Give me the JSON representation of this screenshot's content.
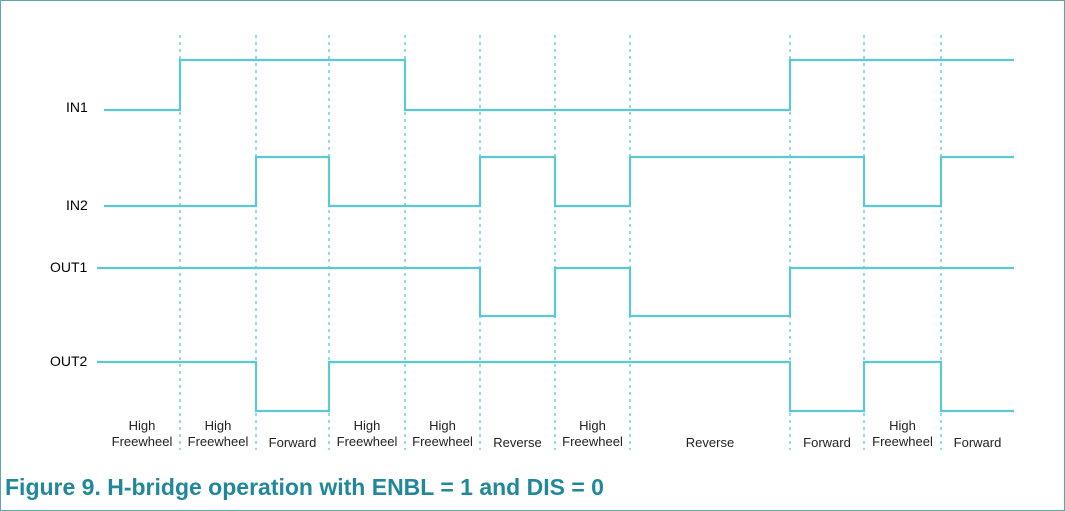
{
  "colors": {
    "waveform": "#5bc8d3",
    "divider": "#5bc8d3",
    "caption": "#21889b",
    "border": "#5fa6a6"
  },
  "signals": [
    {
      "name": "IN1",
      "levels": [
        0,
        1,
        1,
        1,
        0,
        0,
        0,
        0,
        1,
        1,
        1
      ]
    },
    {
      "name": "IN2",
      "levels": [
        0,
        0,
        1,
        0,
        0,
        1,
        0,
        1,
        1,
        0,
        1
      ]
    },
    {
      "name": "OUT1",
      "levels": [
        1,
        1,
        1,
        1,
        1,
        0,
        1,
        0,
        1,
        1,
        1
      ]
    },
    {
      "name": "OUT2",
      "levels": [
        1,
        1,
        0,
        1,
        1,
        1,
        1,
        1,
        0,
        1,
        0
      ]
    }
  ],
  "phases": [
    {
      "line1": "High",
      "line2": "Freewheel"
    },
    {
      "line1": "High",
      "line2": "Freewheel"
    },
    {
      "line1": "",
      "line2": "Forward"
    },
    {
      "line1": "High",
      "line2": "Freewheel"
    },
    {
      "line1": "High",
      "line2": "Freewheel"
    },
    {
      "line1": "",
      "line2": "Reverse"
    },
    {
      "line1": "High",
      "line2": "Freewheel"
    },
    {
      "line1": "",
      "line2": "Reverse"
    },
    {
      "line1": "",
      "line2": "Forward"
    },
    {
      "line1": "High",
      "line2": "Freewheel"
    },
    {
      "line1": "",
      "line2": "Forward"
    }
  ],
  "caption": "Figure 9.  H-bridge operation with ENBL = 1 and DIS = 0"
}
